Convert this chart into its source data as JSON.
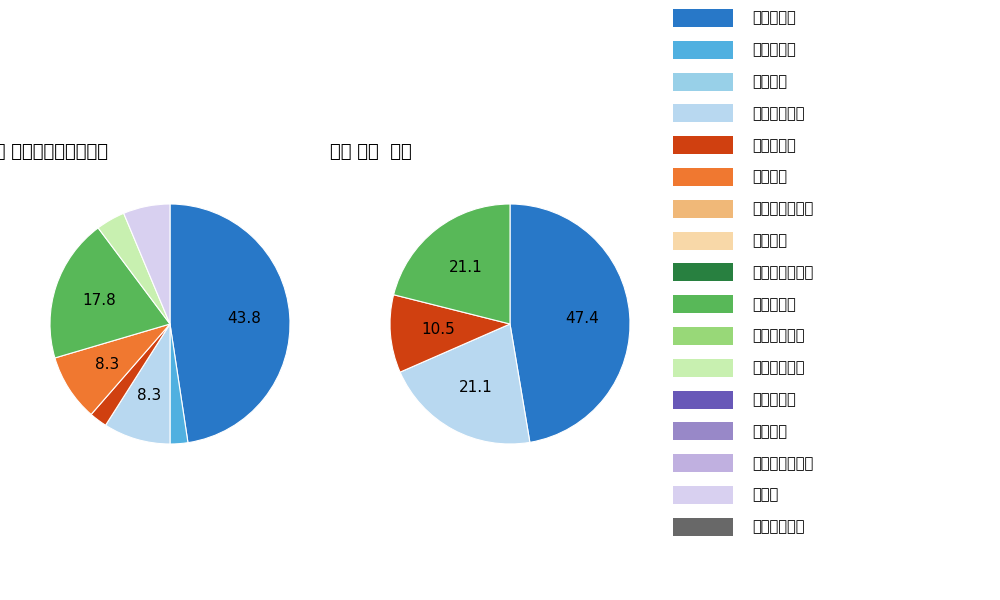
{
  "left_title": "パ・ リーグ全プレイヤー",
  "right_title": "鈴木 大地  選手",
  "pitch_types": [
    "ストレート",
    "ツーシーム",
    "シュート",
    "カットボール",
    "スプリット",
    "フォーク",
    "チェンジアップ",
    "シンカー",
    "高速スライダー",
    "スライダー",
    "縦スライダー",
    "パワーカーブ",
    "スクリュー",
    "ナックル",
    "ナックルカーブ",
    "カーブ",
    "スローカーブ"
  ],
  "colors": [
    "#2878c8",
    "#50b0e0",
    "#98d0e8",
    "#b8d8f0",
    "#d04010",
    "#f07830",
    "#f0b878",
    "#f8d8a8",
    "#288040",
    "#58b858",
    "#98d878",
    "#c8f0b0",
    "#6858b8",
    "#9888c8",
    "#c0b0e0",
    "#d8d0f0",
    "#686868"
  ],
  "left_values": [
    43.8,
    2.2,
    0,
    8.3,
    2.2,
    8.3,
    0,
    0,
    0,
    17.8,
    0,
    3.6,
    0,
    0,
    0,
    5.8,
    0
  ],
  "left_labels": [
    "43.8",
    "",
    "",
    "8.3",
    "",
    "8.3",
    "",
    "",
    "",
    "17.8",
    "",
    "",
    "",
    "",
    "",
    "",
    ""
  ],
  "right_values": [
    47.4,
    0,
    0,
    21.1,
    10.5,
    0,
    0,
    0,
    0,
    21.1,
    0,
    0,
    0,
    0,
    0,
    0,
    0
  ],
  "right_labels": [
    "47.4",
    "",
    "",
    "21.1",
    "10.5",
    "",
    "",
    "",
    "",
    "21.1",
    "",
    "",
    "",
    "",
    "",
    "",
    ""
  ],
  "bg_color": "#ffffff",
  "text_color": "#000000",
  "label_fontsize": 11,
  "title_fontsize": 13,
  "legend_fontsize": 10.5
}
